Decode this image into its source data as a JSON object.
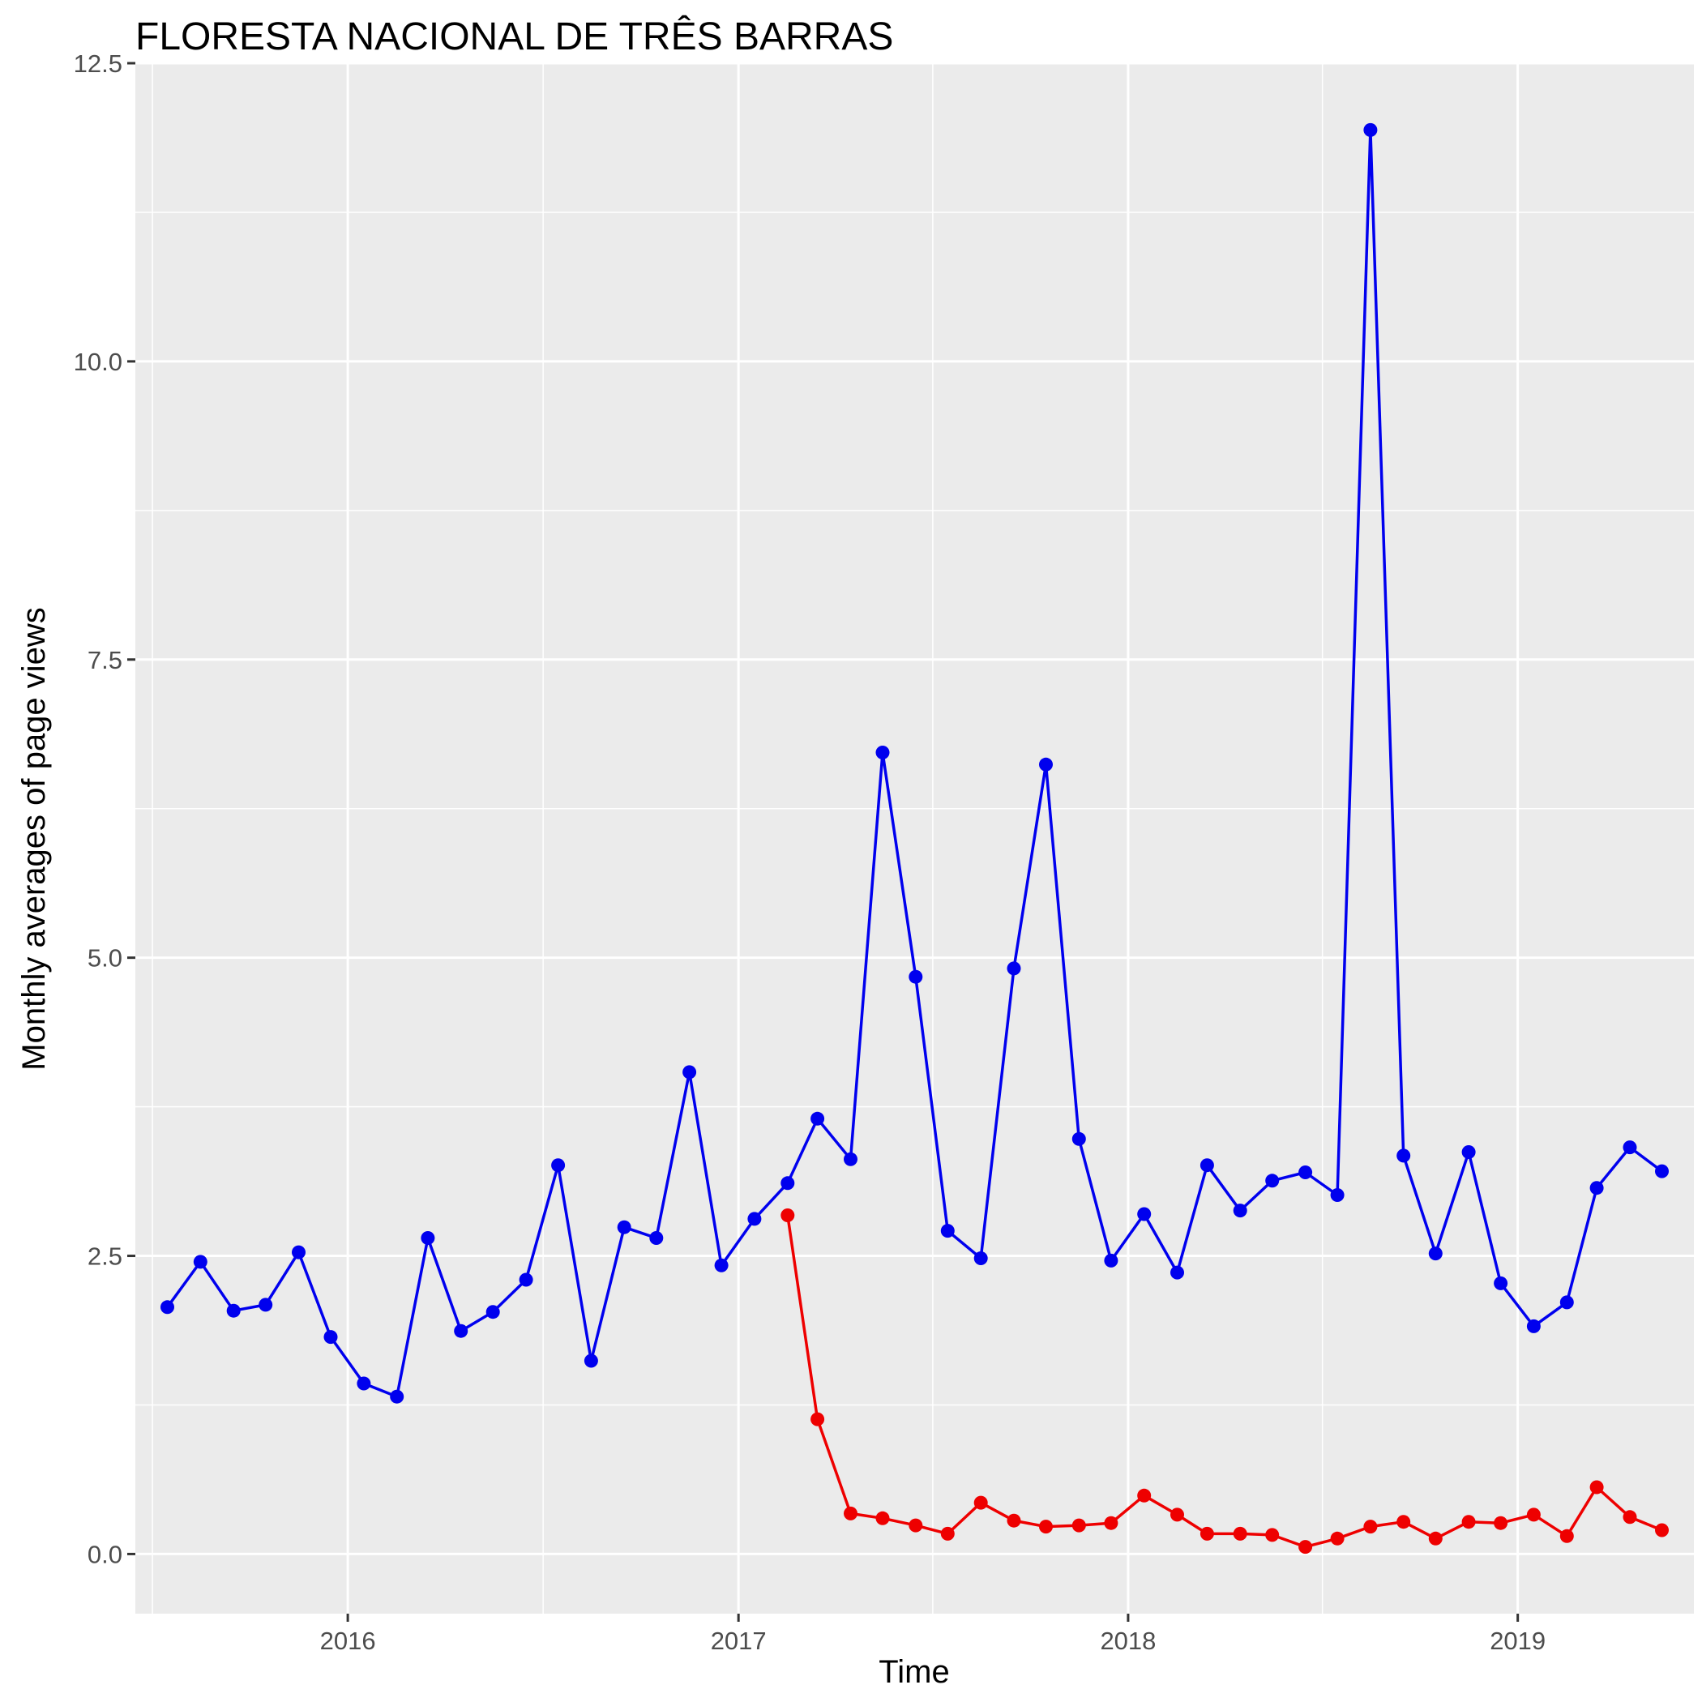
{
  "chart_data": {
    "type": "line",
    "title": "FLORESTA NACIONAL DE TRÊS BARRAS",
    "xlabel": "Time",
    "ylabel": "Monthly averages of page views",
    "ylim": [
      -0.5,
      12.5
    ],
    "xlim": [
      "2015-06-16",
      "2019-06-15"
    ],
    "y_ticks": [
      0.0,
      2.5,
      5.0,
      7.5,
      10.0,
      12.5
    ],
    "y_tick_labels": [
      "0.0",
      "2.5",
      "5.0",
      "7.5",
      "10.0",
      "12.5"
    ],
    "x_ticks": [
      "2016-01-01",
      "2017-01-01",
      "2018-01-01",
      "2019-01-01"
    ],
    "x_tick_labels": [
      "2016",
      "2017",
      "2018",
      "2019"
    ],
    "grid": true,
    "background": "#ebebeb",
    "legend": "none",
    "series": [
      {
        "color": "#0000ee",
        "x": [
          "2015-07",
          "2015-08",
          "2015-09",
          "2015-10",
          "2015-11",
          "2015-12",
          "2016-01",
          "2016-02",
          "2016-03",
          "2016-04",
          "2016-05",
          "2016-06",
          "2016-07",
          "2016-08",
          "2016-09",
          "2016-10",
          "2016-11",
          "2016-12",
          "2017-01",
          "2017-02",
          "2017-03",
          "2017-04",
          "2017-05",
          "2017-06",
          "2017-07",
          "2017-08",
          "2017-09",
          "2017-10",
          "2017-11",
          "2017-12",
          "2018-01",
          "2018-02",
          "2018-03",
          "2018-04",
          "2018-05",
          "2018-06",
          "2018-07",
          "2018-08",
          "2018-09",
          "2018-10",
          "2018-11",
          "2018-12",
          "2019-01",
          "2019-02",
          "2019-03",
          "2019-04",
          "2019-05"
        ],
        "values": [
          2.07,
          2.45,
          2.04,
          2.09,
          2.53,
          1.82,
          1.43,
          1.32,
          2.65,
          1.87,
          2.03,
          2.3,
          3.26,
          1.62,
          2.74,
          2.65,
          4.04,
          2.42,
          2.81,
          3.11,
          3.65,
          3.31,
          6.72,
          4.84,
          2.71,
          2.48,
          4.91,
          6.62,
          3.48,
          2.46,
          2.85,
          2.36,
          3.26,
          2.88,
          3.13,
          3.2,
          3.01,
          11.94,
          3.34,
          2.52,
          3.37,
          2.27,
          1.91,
          2.11,
          3.07,
          3.41,
          3.21
        ]
      },
      {
        "color": "#ee0000",
        "x": [
          "2017-02",
          "2017-03",
          "2017-04",
          "2017-05",
          "2017-06",
          "2017-07",
          "2017-08",
          "2017-09",
          "2017-10",
          "2017-11",
          "2017-12",
          "2018-01",
          "2018-02",
          "2018-03",
          "2018-04",
          "2018-05",
          "2018-06",
          "2018-07",
          "2018-08",
          "2018-09",
          "2018-10",
          "2018-11",
          "2018-12",
          "2019-01",
          "2019-02",
          "2019-03",
          "2019-04",
          "2019-05"
        ],
        "values": [
          2.84,
          1.13,
          0.34,
          0.3,
          0.24,
          0.17,
          0.43,
          0.28,
          0.23,
          0.24,
          0.26,
          0.49,
          0.33,
          0.17,
          0.17,
          0.16,
          0.06,
          0.13,
          0.23,
          0.27,
          0.13,
          0.27,
          0.26,
          0.33,
          0.15,
          0.56,
          0.31,
          0.2
        ]
      }
    ]
  }
}
